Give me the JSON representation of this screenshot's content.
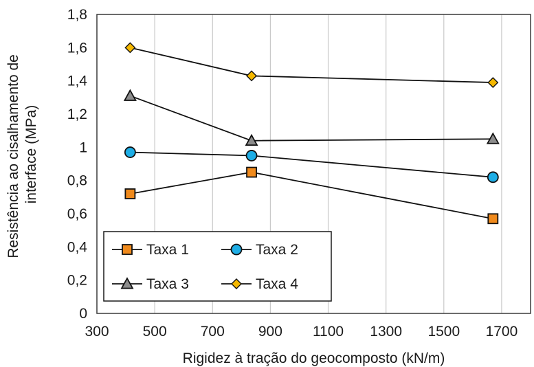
{
  "chart_data": {
    "type": "line",
    "xlabel": "Rigidez à tração do geocomposto (kN/m)",
    "ylabel_lines": [
      "Resistência ao cisalhamento de",
      "interface (MPa)"
    ],
    "xlim": [
      300,
      1800
    ],
    "ylim": [
      0,
      1.8
    ],
    "x_ticks": [
      300,
      500,
      700,
      900,
      1100,
      1300,
      1500,
      1700
    ],
    "y_ticks": [
      0,
      0.2,
      0.4,
      0.6,
      0.8,
      1,
      1.2,
      1.4,
      1.6,
      1.8
    ],
    "x_tick_labels": [
      "300",
      "500",
      "700",
      "900",
      "1100",
      "1300",
      "1500",
      "1700"
    ],
    "y_tick_labels": [
      "0",
      "0,2",
      "0,4",
      "0,6",
      "0,8",
      "1",
      "1,2",
      "1,4",
      "1,6",
      "1,8"
    ],
    "grid": "vertical",
    "legend_position": "bottom-left",
    "x": [
      415,
      835,
      1670
    ],
    "series": [
      {
        "name": "Taxa 1",
        "marker": "square",
        "color": "#f08a1c",
        "values": [
          0.72,
          0.85,
          0.57
        ]
      },
      {
        "name": "Taxa 2",
        "marker": "circle",
        "color": "#1eaee6",
        "values": [
          0.97,
          0.95,
          0.82
        ]
      },
      {
        "name": "Taxa 3",
        "marker": "triangle",
        "color": "#8c8c8c",
        "values": [
          1.31,
          1.04,
          1.05
        ]
      },
      {
        "name": "Taxa 4",
        "marker": "diamond",
        "color": "#f5b800",
        "values": [
          1.6,
          1.43,
          1.39
        ]
      }
    ]
  }
}
